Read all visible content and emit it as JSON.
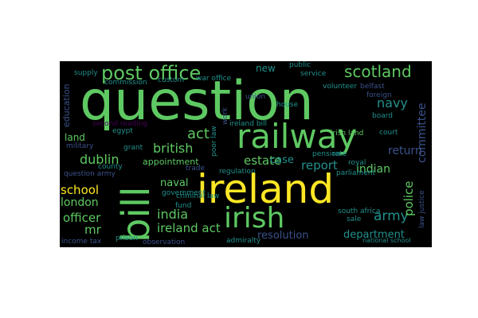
{
  "colors": {
    "background": "#000000",
    "page": "#ffffff",
    "yellow": "#fde725",
    "green": "#5ec962",
    "teal": "#21918c",
    "blue": "#3b528b",
    "purple": "#440154"
  },
  "words": {
    "question": "question",
    "ireland": "ireland",
    "railway": "railway",
    "bill": "bill",
    "irish": "irish",
    "post_office": "post office",
    "scotland": "scotland",
    "act": "act",
    "british": "british",
    "dublin": "dublin",
    "india": "india",
    "estate": "estate",
    "report": "report",
    "indian": "indian",
    "school": "school",
    "london": "london",
    "officer": "officer",
    "mr": "mr",
    "ireland_act": "ireland act",
    "army": "army",
    "resolution": "resolution",
    "department": "department",
    "police": "police",
    "navy": "navy",
    "committee": "committee",
    "return": "return",
    "case": "case",
    "naval": "naval",
    "appointment": "appointment",
    "land": "land",
    "education": "education",
    "new": "new",
    "public": "public",
    "service": "service",
    "volunteer": "volunteer",
    "belfast": "belfast",
    "foreign": "foreign",
    "board": "board",
    "court": "court",
    "rate": "rate",
    "royal": "royal",
    "parliament": "parliament",
    "house": "house",
    "union": "union",
    "war_office": "war office",
    "custom": "custom",
    "supply": "supply",
    "commission": "commission",
    "second_reading": "second reading",
    "egypt": "egypt",
    "military": "military",
    "grant": "grant",
    "county": "county",
    "question_army": "question army",
    "government": "government",
    "trade": "trade",
    "criminal_law": "criminal law",
    "regulation": "regulation",
    "pension": "pension",
    "irish_land": "irish land",
    "ireland_bill": "ireland bill",
    "poor_law": "poor law",
    "work": "work",
    "fund": "fund",
    "prison": "prison",
    "observation": "observation",
    "admiralty": "admiralty",
    "income_tax": "income tax",
    "national_school": "national school",
    "south_africa": "south africa",
    "sale": "sale",
    "law_justice": "law justice"
  }
}
